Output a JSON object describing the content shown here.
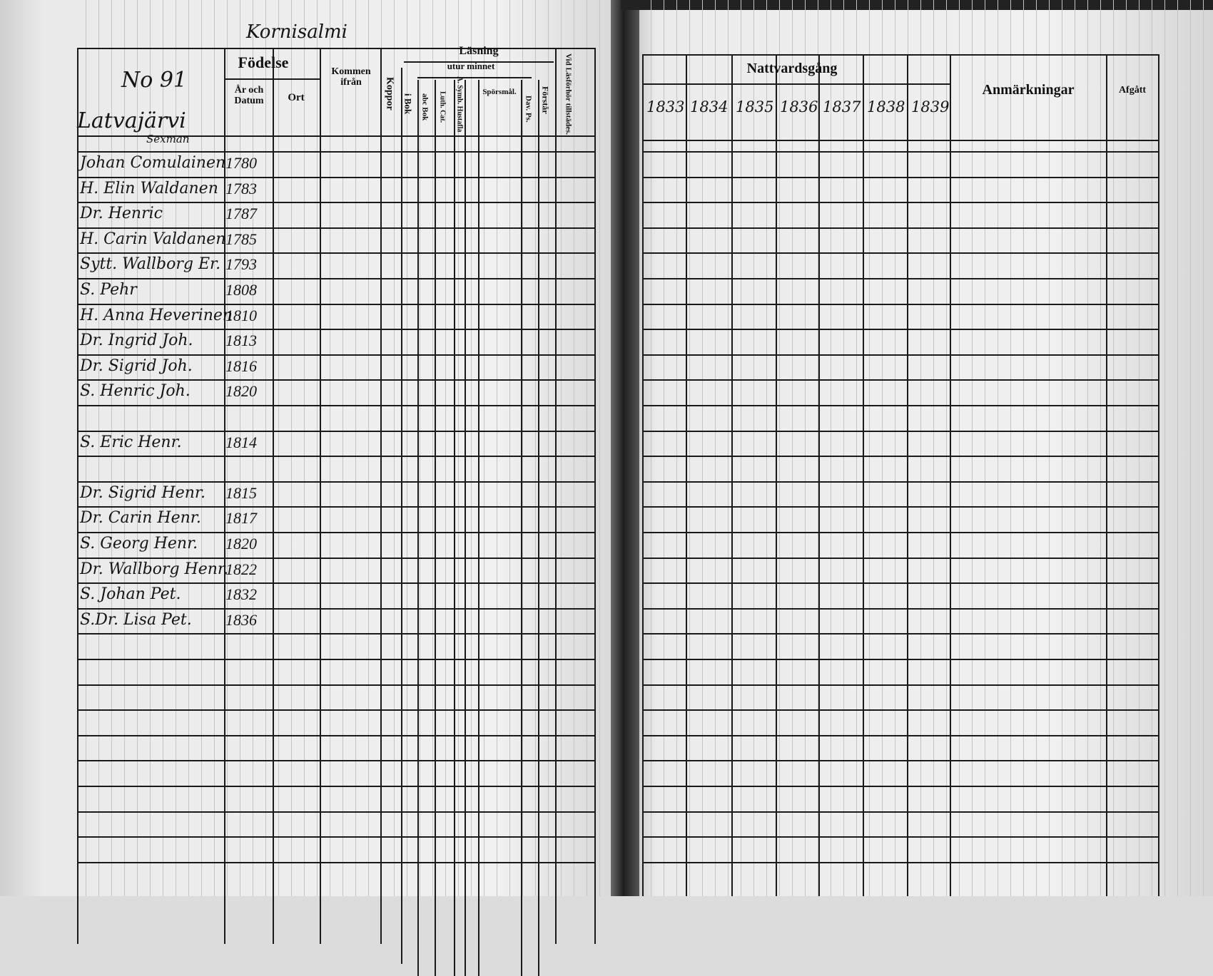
{
  "left_page": {
    "parish_heading": "Kornisalmi",
    "household_number": "No 91",
    "village": "Latvajärvi",
    "title_note": "Sexman",
    "headers": {
      "birth": "Födelse",
      "birth_date": "År och Datum",
      "birth_place": "Ort",
      "came_from": "Kommen ifrån",
      "smallpox": "Koppor",
      "reading": "Läsning",
      "by_heart": "utur minnet",
      "in_book": "i Bok",
      "abc_book": "abc Bok",
      "luth_cat": "Luth. Cat.",
      "symb_hustafla": "A. Symb. Hustafla",
      "questions": "Spörsmål.",
      "dav_ps": "Dav. Ps.",
      "understanding": "Förstår",
      "examination": "Vid Läsförhör tillstädes."
    },
    "persons": [
      {
        "name": "Johan Comulainen",
        "year": "1780"
      },
      {
        "name": "H. Elin Waldanen",
        "year": "1783"
      },
      {
        "name": "Dr. Henric",
        "year": "1787"
      },
      {
        "name": "H. Carin Valdanen",
        "year": "1785"
      },
      {
        "name": "Sytt. Wallborg Er.",
        "year": "1793"
      },
      {
        "name": "S. Pehr",
        "year": "1808"
      },
      {
        "name": "H. Anna Heverinen",
        "year": "1810"
      },
      {
        "name": "Dr. Ingrid Joh.",
        "year": "1813"
      },
      {
        "name": "Dr. Sigrid Joh.",
        "year": "1816"
      },
      {
        "name": "S. Henric Joh.",
        "year": "1820"
      },
      {
        "name": "",
        "year": ""
      },
      {
        "name": "S. Eric Henr.",
        "year": "1814"
      },
      {
        "name": "",
        "year": ""
      },
      {
        "name": "Dr. Sigrid Henr.",
        "year": "1815"
      },
      {
        "name": "Dr. Carin Henr.",
        "year": "1817"
      },
      {
        "name": "S. Georg Henr.",
        "year": "1820"
      },
      {
        "name": "Dr. Wallborg Henr.",
        "year": "1822"
      },
      {
        "name": "S. Johan Pet.",
        "year": "1832"
      },
      {
        "name": "S.Dr. Lisa Pet.",
        "year": "1836"
      }
    ]
  },
  "right_page": {
    "headers": {
      "communion": "Nattvardsgång",
      "years": [
        "1833",
        "1834",
        "1835",
        "1836",
        "1837",
        "1838",
        "1839"
      ],
      "remarks": "Anmärkningar",
      "departed": "Afgått"
    }
  }
}
